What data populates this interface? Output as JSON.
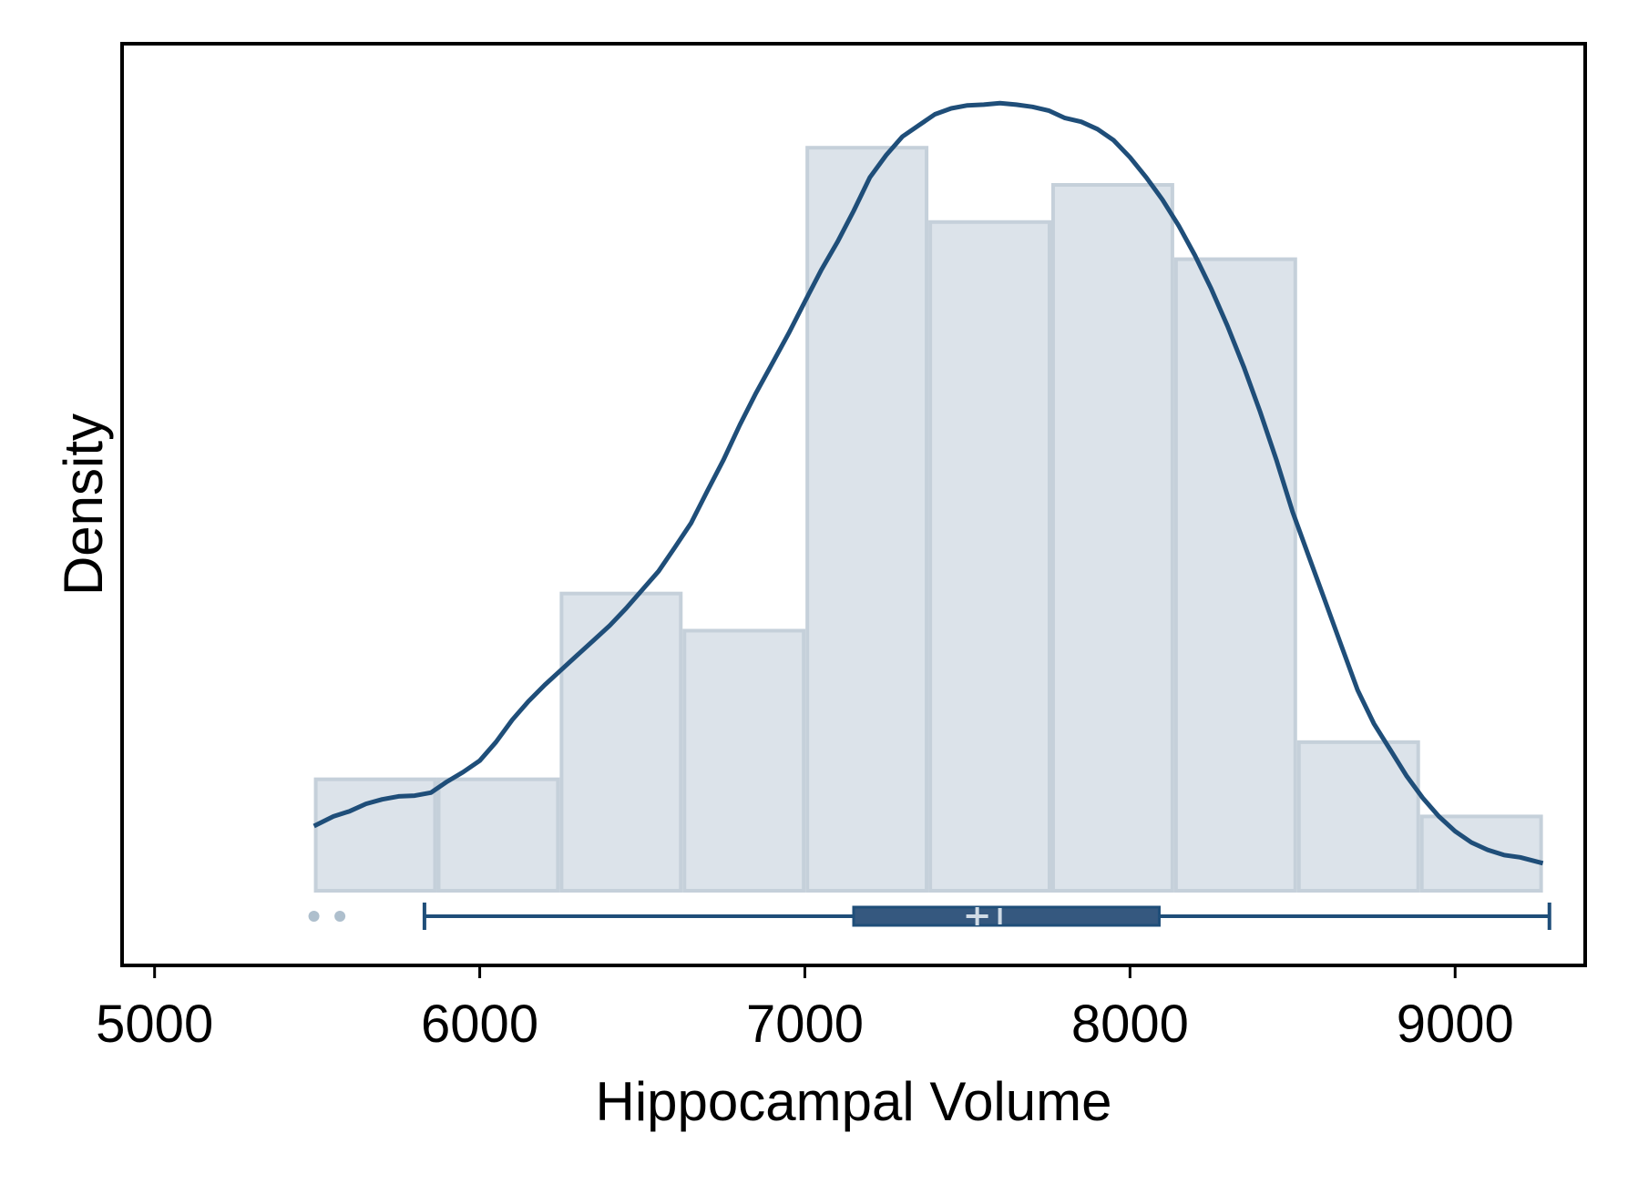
{
  "chart_data": {
    "type": "histogram",
    "title": "",
    "xlabel": "Hippocampal Volume",
    "ylabel": "Density",
    "xlim": [
      4900,
      9400
    ],
    "ylim": [
      0,
      1.14
    ],
    "grid": false,
    "legend": "none",
    "xticks": [
      5000,
      6000,
      7000,
      8000,
      9000
    ],
    "xtick_labels": [
      "5000",
      "6000",
      "7000",
      "8000",
      "9000"
    ],
    "histogram": {
      "bin_edges": [
        5490,
        5868,
        6246,
        6624,
        7002,
        7380,
        7758,
        8136,
        8514,
        8892,
        9270
      ],
      "relative_heights": [
        0.15,
        0.15,
        0.4,
        0.35,
        1.0,
        0.9,
        0.95,
        0.85,
        0.2,
        0.1
      ]
    },
    "density_curve": {
      "x": [
        5490,
        5550,
        5600,
        5650,
        5700,
        5750,
        5800,
        5850,
        5900,
        5950,
        6000,
        6050,
        6100,
        6150,
        6200,
        6250,
        6300,
        6350,
        6400,
        6450,
        6500,
        6550,
        6600,
        6650,
        6700,
        6750,
        6800,
        6850,
        6900,
        6950,
        7000,
        7050,
        7100,
        7150,
        7200,
        7250,
        7300,
        7350,
        7400,
        7450,
        7500,
        7550,
        7600,
        7650,
        7700,
        7750,
        7800,
        7850,
        7900,
        7950,
        8000,
        8050,
        8100,
        8150,
        8200,
        8250,
        8300,
        8350,
        8400,
        8450,
        8500,
        8550,
        8600,
        8650,
        8700,
        8750,
        8800,
        8850,
        8900,
        8950,
        9000,
        9050,
        9100,
        9150,
        9200,
        9270
      ],
      "y": [
        0.087,
        0.1,
        0.107,
        0.117,
        0.123,
        0.127,
        0.128,
        0.132,
        0.147,
        0.16,
        0.175,
        0.2,
        0.23,
        0.255,
        0.277,
        0.297,
        0.317,
        0.337,
        0.357,
        0.38,
        0.405,
        0.43,
        0.462,
        0.495,
        0.538,
        0.58,
        0.627,
        0.67,
        0.71,
        0.75,
        0.793,
        0.835,
        0.873,
        0.915,
        0.96,
        0.99,
        1.015,
        1.03,
        1.045,
        1.053,
        1.057,
        1.058,
        1.06,
        1.058,
        1.055,
        1.05,
        1.04,
        1.035,
        1.025,
        1.01,
        0.987,
        0.96,
        0.93,
        0.895,
        0.855,
        0.81,
        0.76,
        0.705,
        0.645,
        0.58,
        0.51,
        0.45,
        0.39,
        0.33,
        0.27,
        0.225,
        0.19,
        0.155,
        0.125,
        0.1,
        0.08,
        0.065,
        0.055,
        0.048,
        0.045,
        0.037
      ]
    },
    "boxplot": {
      "whisker_low": 5830,
      "q1": 7150,
      "median": 7600,
      "mean": 7530,
      "q3": 8090,
      "whisker_high": 9290,
      "outliers": [
        5490,
        5570
      ]
    },
    "colors": {
      "bar_fill": "#dce3ea",
      "bar_edge": "#c5d0da",
      "curve": "#1f4e79",
      "box_fill": "#35587f",
      "box_edge": "#1f4e79",
      "box_marker": "#d0dbe6",
      "outlier": "#aebfcd",
      "axis": "#000000"
    }
  }
}
